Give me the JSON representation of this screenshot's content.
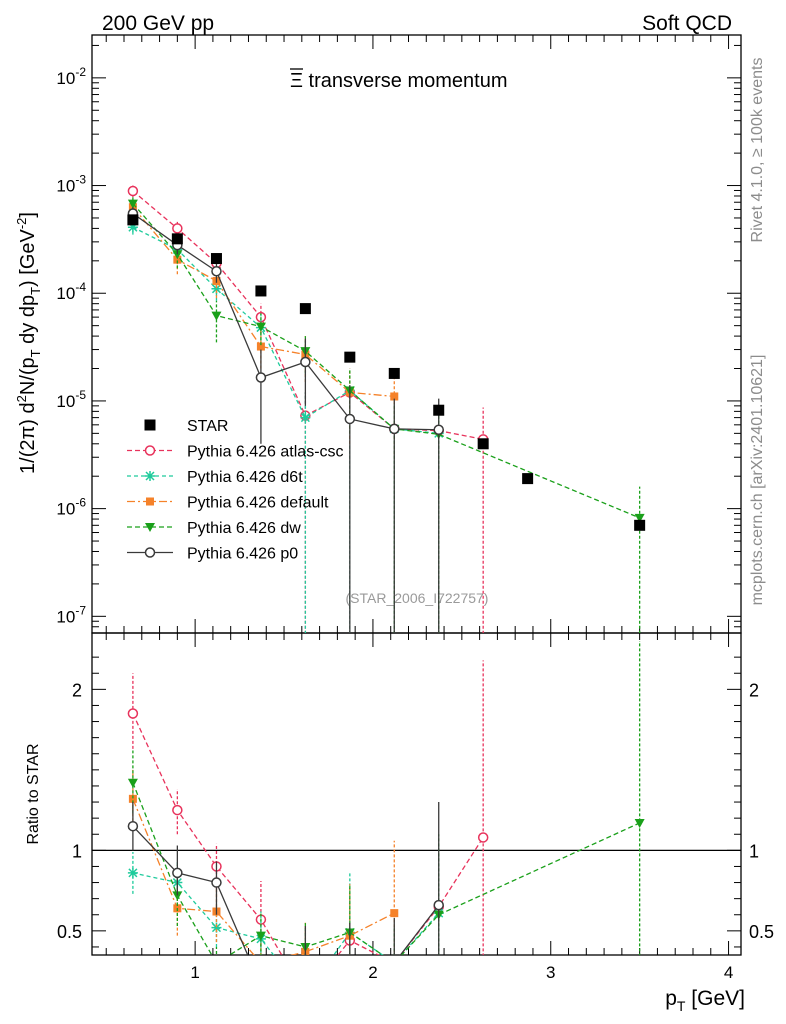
{
  "header": {
    "left": "200 GeV pp",
    "right": "Soft QCD",
    "side_top": "Rivet 4.1.0, ≥ 100k events",
    "side_bottom": "mcplots.cern.ch [arXiv:2401.10621]"
  },
  "chart_data": [
    {
      "type": "line",
      "panel": "main",
      "title": "Ξ̄ transverse momentum",
      "title_symbol": "Ξ",
      "title_suffix": " transverse momentum",
      "ylabel": "1/(2π)  d²N/(p_T dy dp_T) [GeV⁻²]",
      "ylabel_parts": {
        "a": "1/(2π)  d",
        "sup2": "2",
        "b": "N/(p",
        "subT1": "T",
        "c": " dy dp",
        "subT2": "T",
        "d": ") [GeV",
        "supm2": "-2",
        "e": "]"
      },
      "yscale": "log",
      "ylim": [
        7e-08,
        0.025
      ],
      "xlim": [
        0.42,
        4.07
      ],
      "ytick_labels": [
        "10⁻⁷",
        "10⁻⁶",
        "10⁻⁵",
        "10⁻⁴",
        "10⁻³",
        "10⁻²"
      ],
      "watermark": "(STAR_2006_I722757)",
      "legend_position": "middle-left",
      "series": [
        {
          "name": "STAR",
          "color": "#000000",
          "marker": "filled-square",
          "x": [
            0.65,
            0.9,
            1.12,
            1.37,
            1.62,
            1.87,
            2.12,
            2.37,
            2.62,
            2.87,
            3.5
          ],
          "y": [
            0.00048,
            0.00032,
            0.00021,
            0.000105,
            7.2e-05,
            2.55e-05,
            1.8e-05,
            8.2e-06,
            4e-06,
            1.9e-06,
            7e-07
          ]
        },
        {
          "name": "Pythia 6.426 atlas-csc",
          "color": "#e8335c",
          "marker": "open-circle",
          "dash": "5,3",
          "x": [
            0.65,
            0.9,
            1.12,
            1.37,
            1.62,
            1.87,
            2.12,
            2.37,
            2.62
          ],
          "y": [
            0.00089,
            0.0004,
            0.00019,
            6e-05,
            7.3e-06,
            1.2e-05,
            5.5e-06,
            5.3e-06,
            4.4e-06
          ],
          "y_low": [
            0.00078,
            0.00035,
            0.00016,
            4.2e-05,
            5e-08,
            5e-08,
            5e-08,
            5e-08,
            5e-08
          ],
          "y_high": [
            0.001,
            0.00046,
            0.00022,
            8e-05,
            1.2e-05,
            1.8e-05,
            8.5e-06,
            8e-06,
            8.7e-06
          ]
        },
        {
          "name": "Pythia 6.426 d6t",
          "color": "#1fcb9c",
          "marker": "star",
          "dash": "4,3",
          "x": [
            0.65,
            0.9,
            1.12,
            1.37,
            1.62,
            1.87,
            2.12,
            2.37
          ],
          "y": [
            0.00041,
            0.000255,
            0.00011,
            4.8e-05,
            7e-06,
            1.25e-05,
            5.5e-06,
            5e-06
          ],
          "y_low": [
            0.00035,
            0.00021,
            8.5e-05,
            3.2e-05,
            5e-08,
            5e-08,
            5e-08,
            5e-08
          ],
          "y_high": [
            0.00047,
            0.0003,
            0.000135,
            6.5e-05,
            1.2e-05,
            2e-05,
            8e-06,
            8.5e-06
          ]
        },
        {
          "name": "Pythia 6.426 default",
          "color": "#f5822a",
          "marker": "filled-square-small",
          "dash": "8,3,2,3",
          "x": [
            0.65,
            0.9,
            1.12,
            1.37,
            1.62,
            1.87,
            2.12
          ],
          "y": [
            0.00063,
            0.000205,
            0.00013,
            3.2e-05,
            2.7e-05,
            1.2e-05,
            1.1e-05
          ],
          "y_low": [
            0.00055,
            0.00015,
            9e-05,
            2e-05,
            1.5e-05,
            4e-06,
            3.2e-06
          ],
          "y_high": [
            0.00072,
            0.00026,
            0.00017,
            4.5e-05,
            4e-05,
            2e-05,
            1.9e-05
          ]
        },
        {
          "name": "Pythia 6.426 dw",
          "color": "#1aa01a",
          "marker": "filled-triangle-down",
          "dash": "5,3",
          "x": [
            0.65,
            0.9,
            1.12,
            1.37,
            1.62,
            1.87,
            2.12,
            2.37,
            3.5
          ],
          "y": [
            0.00068,
            0.00023,
            6.2e-05,
            4.9e-05,
            2.9e-05,
            1.25e-05,
            5.5e-06,
            4.9e-06,
            8.2e-07
          ],
          "y_low": [
            0.00059,
            0.00017,
            3.5e-05,
            3.3e-05,
            1.8e-05,
            5e-06,
            5e-08,
            5e-08,
            5e-08
          ],
          "y_high": [
            0.00078,
            0.00029,
            8.5e-05,
            6.5e-05,
            4e-05,
            2e-05,
            9.5e-06,
            9e-06,
            1.6e-06
          ]
        },
        {
          "name": "Pythia 6.426 p0",
          "color": "#3a3a3a",
          "marker": "open-circle",
          "dash": "",
          "x": [
            0.65,
            0.9,
            1.12,
            1.37,
            1.62,
            1.87,
            2.12,
            2.37
          ],
          "y": [
            0.00055,
            0.00028,
            0.00016,
            1.65e-05,
            2.3e-05,
            6.8e-06,
            5.5e-06,
            5.4e-06
          ],
          "y_low": [
            0.00048,
            0.00023,
            0.000125,
            4e-06,
            9e-06,
            5e-08,
            5e-08,
            5e-08
          ],
          "y_high": [
            0.00063,
            0.00033,
            0.000195,
            3e-05,
            3.8e-05,
            1.4e-05,
            1.05e-05,
            1.05e-05
          ]
        }
      ]
    },
    {
      "type": "line",
      "panel": "ratio",
      "ylabel": "Ratio to STAR",
      "xlabel": "p_T [GeV]",
      "xlabel_parts": {
        "p": "p",
        "sub": "T",
        "unit": " [GeV]"
      },
      "ylim": [
        0.35,
        2.35
      ],
      "xlim": [
        0.42,
        4.07
      ],
      "xtick_labels": [
        "1",
        "2",
        "3",
        "4"
      ],
      "ytick_labels": [
        "0.5",
        "1",
        "2"
      ],
      "reference_line": 1,
      "series": [
        {
          "name": "Pythia 6.426 atlas-csc",
          "x": [
            0.65,
            0.9,
            1.12,
            1.37,
            1.62,
            1.87,
            2.12,
            2.37,
            2.62
          ],
          "y": [
            1.85,
            1.25,
            0.9,
            0.57,
            0.1,
            0.44,
            0.3,
            0.65,
            1.08
          ],
          "y_low": [
            1.63,
            1.1,
            0.76,
            0.4,
            0.0,
            0.0,
            0.0,
            0.0,
            0.0
          ],
          "y_high": [
            2.1,
            1.38,
            1.04,
            0.81,
            0.17,
            0.72,
            0.5,
            1.0,
            2.18
          ]
        },
        {
          "name": "Pythia 6.426 d6t",
          "x": [
            0.65,
            0.9,
            1.12,
            1.37,
            1.62,
            1.87,
            2.12,
            2.37
          ],
          "y": [
            0.86,
            0.8,
            0.52,
            0.45,
            0.1,
            0.49,
            0.3,
            0.61
          ],
          "y_low": [
            0.73,
            0.66,
            0.4,
            0.3,
            0.0,
            0.0,
            0.0,
            0.0
          ],
          "y_high": [
            0.99,
            0.94,
            0.64,
            0.62,
            0.17,
            0.86,
            0.5,
            1.03
          ]
        },
        {
          "name": "Pythia 6.426 default",
          "x": [
            0.65,
            0.9,
            1.12,
            1.37,
            1.62,
            1.87,
            2.12
          ],
          "y": [
            1.32,
            0.64,
            0.62,
            0.3,
            0.37,
            0.47,
            0.61
          ],
          "y_low": [
            1.15,
            0.47,
            0.43,
            0.19,
            0.2,
            0.16,
            0.18
          ],
          "y_high": [
            1.5,
            0.81,
            0.8,
            0.43,
            0.55,
            0.79,
            1.06
          ]
        },
        {
          "name": "Pythia 6.426 dw",
          "x": [
            0.65,
            0.9,
            1.12,
            1.37,
            1.62,
            1.87,
            2.12,
            2.37,
            3.5
          ],
          "y": [
            1.42,
            0.72,
            0.3,
            0.47,
            0.4,
            0.49,
            0.3,
            0.6,
            1.17
          ],
          "y_low": [
            1.23,
            0.53,
            0.17,
            0.31,
            0.25,
            0.2,
            0.0,
            0.0,
            0.0
          ],
          "y_high": [
            1.62,
            0.91,
            0.4,
            0.62,
            0.55,
            0.78,
            0.53,
            1.1,
            2.3
          ]
        },
        {
          "name": "Pythia 6.426 p0",
          "x": [
            0.65,
            0.9,
            1.12,
            1.37,
            1.62,
            1.87,
            2.12,
            2.37
          ],
          "y": [
            1.15,
            0.86,
            0.8,
            0.16,
            0.32,
            0.27,
            0.3,
            0.66
          ],
          "y_low": [
            1.0,
            0.72,
            0.6,
            0.04,
            0.12,
            0.0,
            0.0,
            0.0
          ],
          "y_high": [
            1.3,
            1.03,
            0.93,
            0.3,
            0.53,
            0.55,
            0.58,
            1.3
          ]
        }
      ]
    }
  ]
}
